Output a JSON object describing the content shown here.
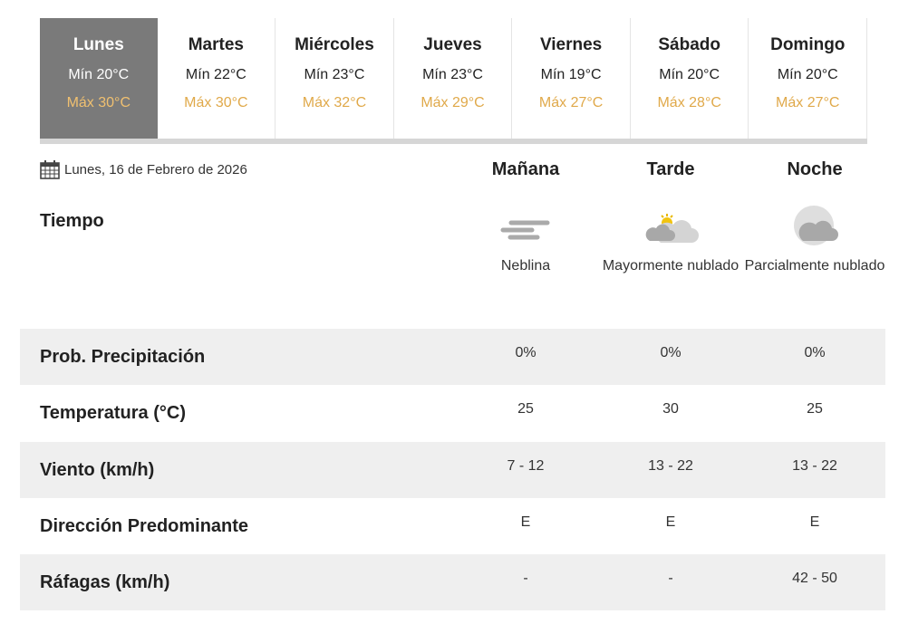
{
  "days": [
    {
      "name": "Lunes",
      "min": "Mín 20°C",
      "max": "Máx 30°C",
      "active": true
    },
    {
      "name": "Martes",
      "min": "Mín 22°C",
      "max": "Máx 30°C"
    },
    {
      "name": "Miércoles",
      "min": "Mín 23°C",
      "max": "Máx 32°C"
    },
    {
      "name": "Jueves",
      "min": "Mín 23°C",
      "max": "Máx 29°C"
    },
    {
      "name": "Viernes",
      "min": "Mín 19°C",
      "max": "Máx 27°C"
    },
    {
      "name": "Sábado",
      "min": "Mín 20°C",
      "max": "Máx 28°C"
    },
    {
      "name": "Domingo",
      "min": "Mín 20°C",
      "max": "Máx 27°C"
    }
  ],
  "date": "Lunes, 16 de Febrero de 2026",
  "columns": [
    "Mañana",
    "Tarde",
    "Noche"
  ],
  "tiempo": {
    "label": "Tiempo",
    "conditions": [
      {
        "text": "Neblina",
        "icon": "fog-icon"
      },
      {
        "text": "Mayormente nublado",
        "icon": "mostly-cloudy-day-icon"
      },
      {
        "text": "Parcialmente nublado",
        "icon": "partly-cloudy-night-icon"
      }
    ]
  },
  "rows": [
    {
      "label": "Prob. Precipitación",
      "values": [
        "0%",
        "0%",
        "0%"
      ]
    },
    {
      "label": "Temperatura (°C)",
      "values": [
        "25",
        "30",
        "25"
      ]
    },
    {
      "label": "Viento (km/h)",
      "values": [
        "7 - 12",
        "13 - 22",
        "13 - 22"
      ]
    },
    {
      "label": "Dirección Predominante",
      "values": [
        "E",
        "E",
        "E"
      ]
    },
    {
      "label": "Ráfagas (km/h)",
      "values": [
        "-",
        "-",
        "42 - 50"
      ]
    }
  ],
  "colors": {
    "active_tab": "#7a7a7a",
    "max_temp": "#e0a94a",
    "row_alt": "#efefef"
  }
}
